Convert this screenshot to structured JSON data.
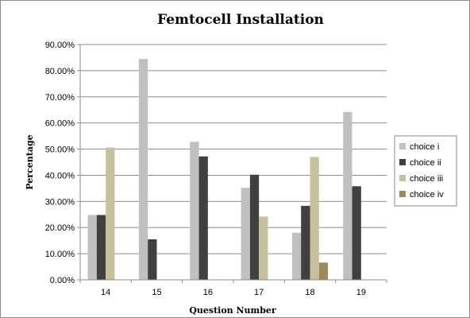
{
  "chart_data": {
    "type": "bar",
    "title": "Femtocell Installation",
    "xlabel": "Question Number",
    "ylabel": "Percentage",
    "categories": [
      "14",
      "15",
      "16",
      "17",
      "18",
      "19"
    ],
    "ylim": [
      0,
      90
    ],
    "y_ticks": [
      "0.00%",
      "10.00%",
      "20.00%",
      "30.00%",
      "40.00%",
      "50.00%",
      "60.00%",
      "70.00%",
      "80.00%",
      "90.00%"
    ],
    "grid": true,
    "legend_position": "right",
    "series": [
      {
        "name": "choice i",
        "color": "#c0c0c0",
        "values": [
          24.8,
          84.5,
          52.8,
          35.2,
          18.0,
          64.2
        ]
      },
      {
        "name": "choice ii",
        "color": "#404040",
        "values": [
          24.8,
          15.5,
          47.2,
          40.2,
          28.3,
          35.8
        ]
      },
      {
        "name": "choice iii",
        "color": "#c8c09a",
        "values": [
          50.6,
          0,
          0,
          24.2,
          47.0,
          0
        ]
      },
      {
        "name": "choice iv",
        "color": "#9a8c5a",
        "values": [
          0,
          0,
          0,
          0,
          6.6,
          0
        ]
      }
    ]
  }
}
